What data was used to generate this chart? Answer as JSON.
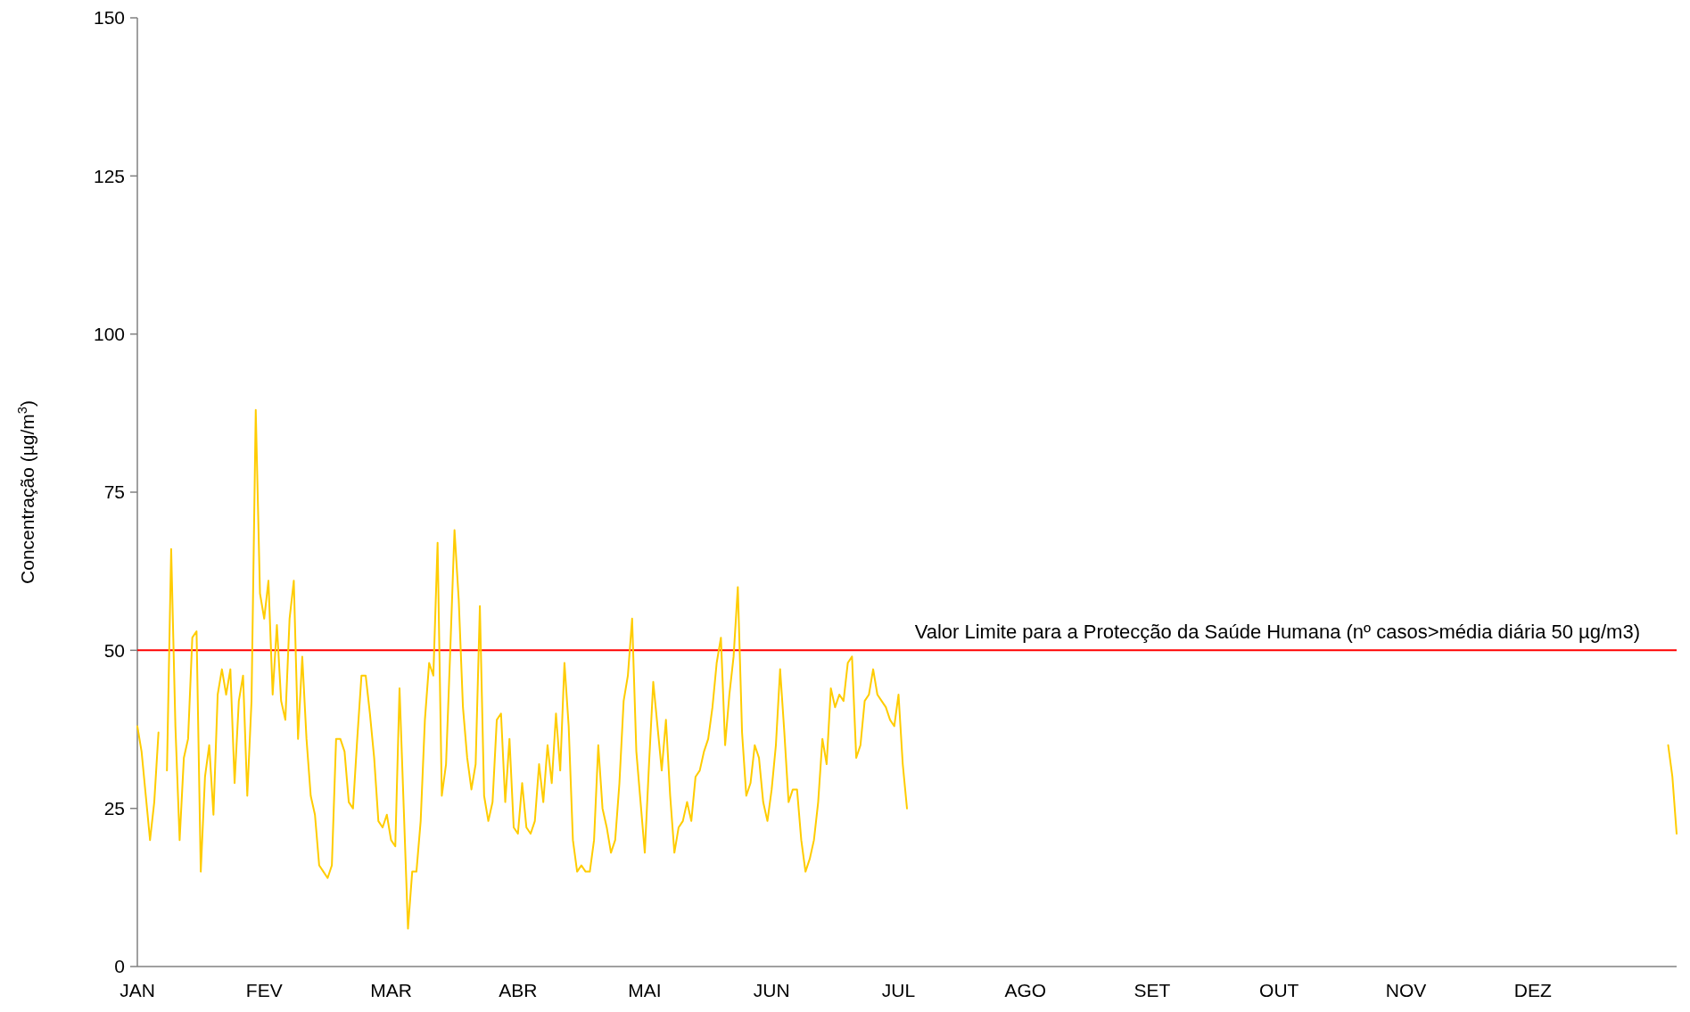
{
  "chart_data": {
    "type": "line",
    "ylabel": "Concentração (µg/m$^{3}$)",
    "categories": [
      "JAN",
      null,
      null,
      null,
      null,
      null,
      null,
      null,
      null,
      null,
      null,
      null,
      null,
      null,
      null,
      null,
      null,
      null,
      null,
      null,
      null,
      null,
      null,
      null,
      null,
      null,
      null,
      null,
      null,
      null,
      "FEV",
      null,
      null,
      null,
      null,
      null,
      null,
      null,
      null,
      null,
      null,
      null,
      null,
      null,
      null,
      null,
      null,
      null,
      null,
      null,
      null,
      null,
      null,
      null,
      null,
      null,
      null,
      null,
      null,
      null,
      "MAR",
      null,
      null,
      null,
      null,
      null,
      null,
      null,
      null,
      null,
      null,
      null,
      null,
      null,
      null,
      null,
      null,
      null,
      null,
      null,
      null,
      null,
      null,
      null,
      null,
      null,
      null,
      null,
      null,
      null,
      "ABR",
      null,
      null,
      null,
      null,
      null,
      null,
      null,
      null,
      null,
      null,
      null,
      null,
      null,
      null,
      null,
      null,
      null,
      null,
      null,
      null,
      null,
      null,
      null,
      null,
      null,
      null,
      null,
      null,
      null,
      "MAI",
      null,
      null,
      null,
      null,
      null,
      null,
      null,
      null,
      null,
      null,
      null,
      null,
      null,
      null,
      null,
      null,
      null,
      null,
      null,
      null,
      null,
      null,
      null,
      null,
      null,
      null,
      null,
      null,
      null,
      "JUN",
      null,
      null,
      null,
      null,
      null,
      null,
      null,
      null,
      null,
      null,
      null,
      null,
      null,
      null,
      null,
      null,
      null,
      null,
      null,
      null,
      null,
      null,
      null,
      null,
      null,
      null,
      null,
      null,
      null,
      "JUL",
      null,
      null,
      null,
      null,
      null,
      null,
      null,
      null,
      null,
      null,
      null,
      null,
      null,
      null,
      null,
      null,
      null,
      null,
      null,
      null,
      null,
      null,
      null,
      null,
      null,
      null,
      null,
      null,
      null,
      "AGO",
      null,
      null,
      null,
      null,
      null,
      null,
      null,
      null,
      null,
      null,
      null,
      null,
      null,
      null,
      null,
      null,
      null,
      null,
      null,
      null,
      null,
      null,
      null,
      null,
      null,
      null,
      null,
      null,
      null,
      "SET",
      null,
      null,
      null,
      null,
      null,
      null,
      null,
      null,
      null,
      null,
      null,
      null,
      null,
      null,
      null,
      null,
      null,
      null,
      null,
      null,
      null,
      null,
      null,
      null,
      null,
      null,
      null,
      null,
      null,
      "OUT",
      null,
      null,
      null,
      null,
      null,
      null,
      null,
      null,
      null,
      null,
      null,
      null,
      null,
      null,
      null,
      null,
      null,
      null,
      null,
      null,
      null,
      null,
      null,
      null,
      null,
      null,
      null,
      null,
      null,
      "NOV",
      null,
      null,
      null,
      null,
      null,
      null,
      null,
      null,
      null,
      null,
      null,
      null,
      null,
      null,
      null,
      null,
      null,
      null,
      null,
      null,
      null,
      null,
      null,
      null,
      null,
      null,
      null,
      null,
      null,
      "DEZ",
      null,
      null,
      null,
      null,
      null,
      null,
      null,
      null,
      null,
      null,
      null,
      null,
      null,
      null,
      null,
      null,
      null,
      null,
      null,
      null,
      null,
      null,
      null,
      null,
      null,
      null,
      null,
      null,
      null,
      null,
      null,
      null,
      null,
      null
    ],
    "ylim": [
      0,
      150
    ],
    "yticks": [
      0,
      25,
      50,
      75,
      100,
      125,
      150
    ],
    "grid": false,
    "marker": "none",
    "line_style": "solid",
    "ref_lines": [
      {
        "axis": "y",
        "value": 50,
        "label": "Valor Limite para a Protecção da Saúde Humana (nº casos>média diária 50 µg/m3)",
        "color": "#ff0000"
      }
    ],
    "series": [
      {
        "color": "#ffcc00",
        "values": [
          38,
          34,
          27,
          20,
          26,
          37,
          null,
          31,
          66,
          38,
          20,
          33,
          36,
          52,
          53,
          15,
          30,
          35,
          24,
          43,
          47,
          43,
          47,
          29,
          42,
          46,
          27,
          42,
          88,
          59,
          55,
          61,
          43,
          54,
          42,
          39,
          55,
          61,
          36,
          49,
          36,
          27,
          24,
          16,
          15,
          14,
          16,
          36,
          36,
          34,
          26,
          25,
          36,
          46,
          46,
          40,
          33,
          23,
          22,
          24,
          20,
          19,
          44,
          25,
          6,
          15,
          15,
          23,
          39,
          48,
          46,
          67,
          27,
          32,
          50,
          69,
          58,
          41,
          33,
          28,
          32,
          57,
          27,
          23,
          26,
          39,
          40,
          26,
          36,
          22,
          21,
          29,
          22,
          21,
          23,
          32,
          26,
          35,
          29,
          40,
          31,
          48,
          38,
          20,
          15,
          16,
          15,
          15,
          20,
          35,
          25,
          22,
          18,
          20,
          29,
          42,
          46,
          55,
          34,
          26,
          18,
          32,
          45,
          38,
          31,
          39,
          27,
          18,
          22,
          23,
          26,
          23,
          30,
          31,
          34,
          36,
          41,
          48,
          52,
          35,
          43,
          49,
          60,
          37,
          27,
          29,
          35,
          33,
          26,
          23,
          28,
          35,
          47,
          37,
          26,
          28,
          28,
          20,
          15,
          17,
          20,
          26,
          36,
          32,
          44,
          41,
          43,
          42,
          48,
          49,
          33,
          35,
          42,
          43,
          47,
          43,
          42,
          41,
          39,
          38,
          43,
          32,
          25,
          null,
          null,
          null,
          null,
          null,
          null,
          null,
          null,
          null,
          null,
          null,
          null,
          null,
          null,
          null,
          null,
          null,
          null,
          null,
          null,
          null,
          null,
          null,
          null,
          null,
          null,
          null,
          null,
          null,
          null,
          null,
          null,
          null,
          null,
          null,
          null,
          null,
          null,
          null,
          null,
          null,
          null,
          null,
          null,
          null,
          null,
          null,
          null,
          null,
          null,
          null,
          null,
          null,
          null,
          null,
          null,
          null,
          null,
          null,
          null,
          null,
          null,
          null,
          null,
          null,
          null,
          null,
          null,
          null,
          null,
          null,
          null,
          null,
          null,
          null,
          null,
          null,
          null,
          null,
          null,
          null,
          null,
          null,
          null,
          null,
          null,
          null,
          null,
          null,
          null,
          null,
          null,
          null,
          null,
          null,
          null,
          null,
          null,
          null,
          null,
          null,
          null,
          null,
          null,
          null,
          null,
          null,
          null,
          null,
          null,
          null,
          null,
          null,
          null,
          null,
          null,
          null,
          null,
          null,
          null,
          null,
          null,
          null,
          null,
          null,
          null,
          null,
          null,
          null,
          null,
          null,
          null,
          null,
          null,
          null,
          null,
          null,
          null,
          null,
          null,
          null,
          null,
          null,
          null,
          null,
          null,
          null,
          null,
          null,
          null,
          null,
          null,
          null,
          null,
          null,
          null,
          null,
          null,
          null,
          null,
          null,
          null,
          null,
          null,
          null,
          null,
          null,
          null,
          null,
          null,
          null,
          null,
          null,
          null,
          null,
          null,
          null,
          null,
          null,
          35,
          30,
          21
        ]
      }
    ]
  }
}
